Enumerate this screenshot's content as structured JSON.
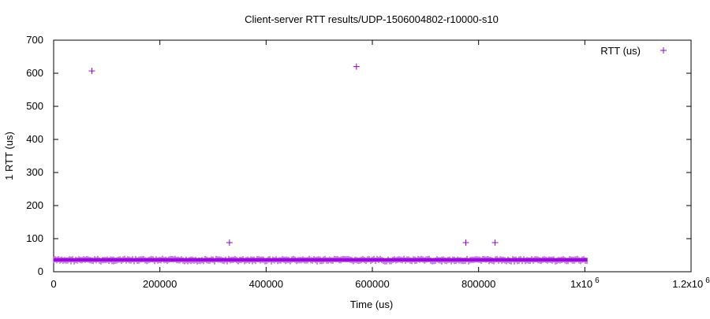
{
  "chart_data": {
    "type": "scatter",
    "title": "Client-server RTT results/UDP-1506004802-r10000-s10",
    "xlabel": "Time (us)",
    "ylabel": "1 RTT (us)",
    "xlim": [
      0,
      1200000
    ],
    "ylim": [
      0,
      700
    ],
    "x_ticks": [
      0,
      200000,
      400000,
      600000,
      800000,
      1000000,
      1200000
    ],
    "x_tick_labels": [
      "0",
      "200000",
      "400000",
      "600000",
      "800000",
      "1x10",
      "1.2x10"
    ],
    "x_tick_exponents": [
      "",
      "",
      "",
      "",
      "",
      "6",
      "6"
    ],
    "y_ticks": [
      0,
      100,
      200,
      300,
      400,
      500,
      600,
      700
    ],
    "y_tick_labels": [
      "0",
      "100",
      "200",
      "300",
      "400",
      "500",
      "600",
      "700"
    ],
    "grid": false,
    "legend_position": "top-right",
    "series": [
      {
        "name": "RTT (us)",
        "color": "#9400d3",
        "marker": "plus",
        "baseline_band": {
          "x_start": 0,
          "x_end": 1005000,
          "y_typical": 35,
          "y_min": 31,
          "y_max": 41,
          "count": 10000
        },
        "outliers": [
          {
            "x": 72000,
            "y": 607
          },
          {
            "x": 331000,
            "y": 88
          },
          {
            "x": 570000,
            "y": 620
          },
          {
            "x": 776000,
            "y": 88
          },
          {
            "x": 831000,
            "y": 88
          }
        ]
      }
    ]
  }
}
